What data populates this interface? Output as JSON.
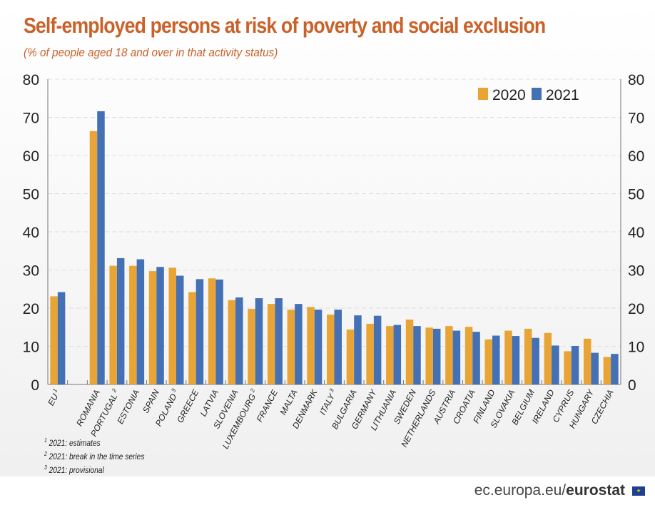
{
  "title": "Self-employed persons at risk of poverty and social exclusion",
  "subtitle": "(% of people aged 18 and over in that activity status)",
  "chart_data": {
    "type": "bar",
    "categories": [
      "EU",
      "",
      "ROMANIA",
      "PORTUGAL",
      "ESTONIA",
      "SPAIN",
      "POLAND",
      "GREECE",
      "LATVIA",
      "SLOVENIA",
      "LUXEMBOURG",
      "FRANCE",
      "MALTA",
      "DENMARK",
      "ITALY",
      "BULGARIA",
      "GERMANY",
      "LITHUANIA",
      "SWEDEN",
      "NETHERLANDS",
      "AUSTRIA",
      "CROATIA",
      "FINLAND",
      "SLOVAKIA",
      "BELGIUM",
      "IRELAND",
      "CYPRUS",
      "HUNGARY",
      "CZECHIA"
    ],
    "category_notes": [
      "1",
      "",
      "",
      "2",
      "",
      "",
      "3",
      "",
      "",
      "",
      "2",
      "",
      "",
      "",
      "3",
      "",
      "",
      "",
      "",
      "",
      "",
      "",
      "",
      "",
      "",
      "",
      "",
      "",
      ""
    ],
    "series": [
      {
        "name": "2020",
        "color": "#e8a535",
        "values": [
          23.1,
          null,
          66.4,
          31.1,
          31.1,
          29.7,
          30.6,
          24.2,
          27.8,
          22.1,
          19.8,
          21.1,
          19.6,
          20.3,
          18.3,
          14.4,
          15.9,
          15.3,
          17.0,
          14.9,
          15.3,
          15.1,
          11.8,
          14.1,
          14.6,
          13.5,
          8.7,
          12.0,
          7.2
        ]
      },
      {
        "name": "2021",
        "color": "#4470b5",
        "values": [
          24.2,
          null,
          71.6,
          33.1,
          32.8,
          30.8,
          28.5,
          27.6,
          27.5,
          22.8,
          22.6,
          22.6,
          21.1,
          19.6,
          19.6,
          18.1,
          18.0,
          15.6,
          15.3,
          14.6,
          14.1,
          13.8,
          12.8,
          12.7,
          12.2,
          10.2,
          10.1,
          8.3,
          8.0
        ]
      }
    ],
    "ylim": [
      0,
      80
    ],
    "yticks": [
      0,
      10,
      20,
      30,
      40,
      50,
      60,
      70,
      80
    ],
    "grid": true,
    "legend": "top-right",
    "xlabel": "",
    "ylabel": ""
  },
  "notes": [
    {
      "mark": "1",
      "text": "2021: estimates"
    },
    {
      "mark": "2",
      "text": "2021: break in the time series"
    },
    {
      "mark": "3",
      "text": "2021: provisional"
    }
  ],
  "footer": {
    "site": "ec.europa.eu/",
    "brand": "eurostat"
  }
}
